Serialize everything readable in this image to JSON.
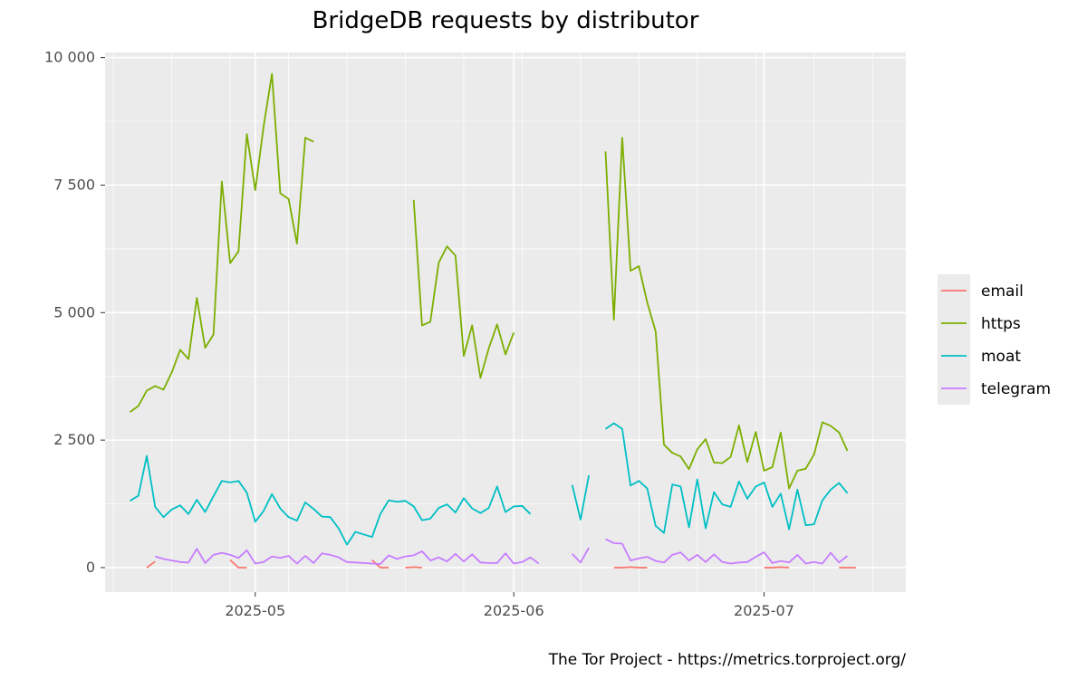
{
  "chart_data": {
    "type": "line",
    "title": "BridgeDB requests by distributor",
    "xlabel": "",
    "ylabel": "",
    "caption": "The Tor Project - https://metrics.torproject.org/",
    "x_axis": {
      "ticks": [
        "2025-05",
        "2025-06",
        "2025-07"
      ],
      "tick_dates": [
        "2025-05-01",
        "2025-06-01",
        "2025-07-01"
      ],
      "range": [
        "2025-04-13",
        "2025-07-18"
      ]
    },
    "y_axis": {
      "ticks": [
        "0",
        "2 500",
        "5 000",
        "7 500",
        "10 000"
      ],
      "tick_values": [
        0,
        2500,
        5000,
        7500,
        10000
      ],
      "range": [
        -480,
        10100
      ]
    },
    "grid": true,
    "background": "#ebebeb",
    "legend": {
      "position": "right"
    },
    "series": [
      {
        "name": "email",
        "color": "#F8766D",
        "segments": [
          {
            "start": "2025-04-18",
            "values": [
              0,
              120
            ]
          },
          {
            "start": "2025-04-28",
            "values": [
              150,
              0,
              0
            ]
          },
          {
            "start": "2025-05-15",
            "values": [
              150,
              0,
              0
            ]
          },
          {
            "start": "2025-05-19",
            "values": [
              0,
              10,
              0
            ]
          },
          {
            "start": "2025-06-13",
            "values": [
              0,
              0,
              10,
              0,
              0
            ]
          },
          {
            "start": "2025-07-01",
            "values": [
              0,
              0,
              10,
              0
            ]
          },
          {
            "start": "2025-07-10",
            "values": [
              0,
              0,
              0
            ]
          }
        ]
      },
      {
        "name": "https",
        "color": "#7CAE00",
        "segments": [
          {
            "start": "2025-04-16",
            "values": [
              3050,
              3170,
              3470,
              3560,
              3490,
              3830,
              4270,
              4090,
              5290,
              4310,
              4570,
              7570,
              5970,
              6200,
              8500,
              7400,
              8650,
              9680,
              7340,
              7230,
              6350,
              8430,
              8350
            ]
          },
          {
            "start": "2025-05-20",
            "values": [
              7210,
              4750,
              4820,
              5980,
              6300,
              6120,
              4150,
              4750,
              3720,
              4300,
              4770,
              4180,
              4610
            ]
          },
          {
            "start": "2025-06-12",
            "values": [
              8160,
              4860,
              8430,
              5820,
              5910,
              5200,
              4630,
              2410,
              2250,
              2180,
              1930,
              2320,
              2520,
              2060,
              2050,
              2170,
              2790,
              2070,
              2660,
              1900,
              1970,
              2650,
              1550,
              1900,
              1940,
              2220,
              2850,
              2780,
              2650,
              2290
            ]
          }
        ]
      },
      {
        "name": "moat",
        "color": "#00BFC4",
        "segments": [
          {
            "start": "2025-04-16",
            "values": [
              1310,
              1410,
              2190,
              1190,
              990,
              1140,
              1220,
              1050,
              1330,
              1090,
              1400,
              1700,
              1670,
              1700,
              1470,
              900,
              1110,
              1440,
              1160,
              990,
              920,
              1280,
              1150,
              1000,
              990,
              770,
              450,
              700,
              650,
              600,
              1050,
              1320,
              1290,
              1310,
              1200,
              930,
              960,
              1170,
              1240,
              1080,
              1360,
              1160,
              1070,
              1170,
              1590,
              1090,
              1200,
              1210,
              1050
            ]
          },
          {
            "start": "2025-06-08",
            "values": [
              1620,
              940,
              1810
            ]
          },
          {
            "start": "2025-06-12",
            "values": [
              2720,
              2830,
              2720,
              1610,
              1700,
              1550,
              820,
              680,
              1630,
              1590,
              790,
              1730,
              770,
              1480,
              1240,
              1190,
              1690,
              1350,
              1590,
              1670,
              1190,
              1450,
              750,
              1530,
              830,
              850,
              1320,
              1530,
              1660,
              1460
            ]
          }
        ]
      },
      {
        "name": "telegram",
        "color": "#C77CFF",
        "segments": [
          {
            "start": "2025-04-19",
            "values": [
              220,
              170,
              140,
              110,
              100,
              370,
              90,
              250,
              290,
              250,
              190,
              340,
              80,
              110,
              220,
              190,
              230,
              80,
              230,
              90,
              280,
              250,
              200,
              110,
              100,
              90,
              80,
              70,
              240,
              170,
              220,
              240,
              320,
              140,
              200,
              120,
              270,
              120,
              260,
              100,
              90,
              90,
              280,
              80,
              110,
              200,
              80
            ]
          },
          {
            "start": "2025-06-08",
            "values": [
              270,
              100,
              390
            ]
          },
          {
            "start": "2025-06-12",
            "values": [
              560,
              480,
              470,
              140,
              180,
              210,
              130,
              100,
              250,
              300,
              140,
              250,
              110,
              260,
              110,
              80,
              100,
              110,
              210,
              300,
              90,
              130,
              100,
              250,
              80,
              110,
              80,
              290,
              100,
              230
            ]
          }
        ]
      }
    ]
  }
}
